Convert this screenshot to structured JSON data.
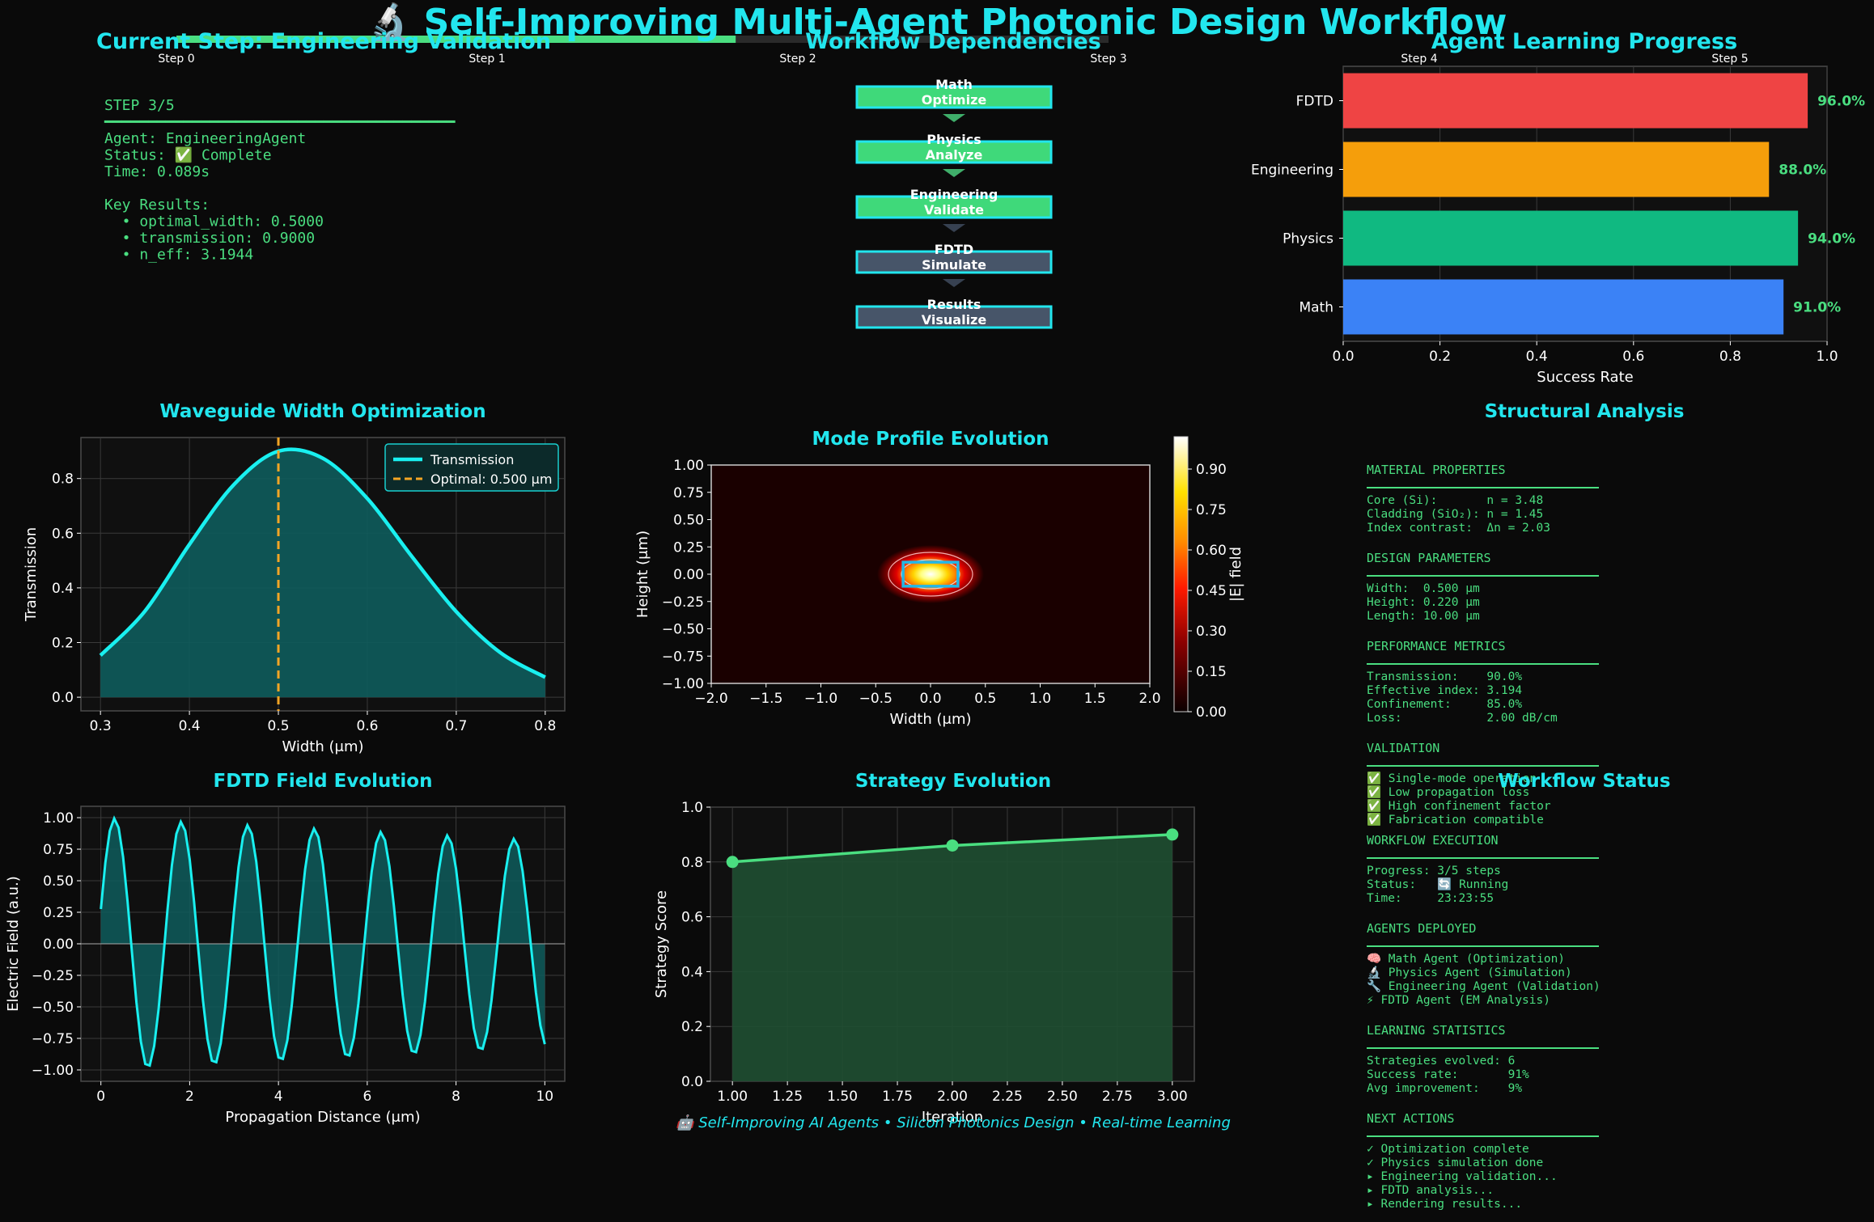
{
  "main_title": "🔬 Self-Improving Multi-Agent Photonic Design Workflow",
  "footer": "🤖 Self-Improving AI Agents • Silicon Photonics Design • Real-time Learning",
  "colors": {
    "accent": "#22e6ee",
    "text_green": "#4ade80",
    "bg": "#0a0a0a",
    "panel": "#0f0f0f"
  },
  "progress": {
    "steps": [
      "Step 0",
      "Step 1",
      "Step 2",
      "Step 3",
      "Step 4",
      "Step 5"
    ],
    "fraction": 0.6
  },
  "current_step": {
    "title": "Current Step: Engineering Validation",
    "lines": [
      "STEP 3/5",
      "━━━━━━━━━━━━━━━━━━━━━━━━━━━━━━━━━━━━━━━━",
      "Agent: EngineeringAgent",
      "Status: ✅ Complete",
      "Time: 0.089s",
      "",
      "Key Results:",
      "  • optimal_width: 0.5000",
      "  • transmission: 0.9000",
      "  • n_eff: 3.1944"
    ]
  },
  "dependencies": {
    "title": "Workflow Dependencies",
    "nodes": [
      {
        "line1": "Math",
        "line2": "Optimize",
        "done": true
      },
      {
        "line1": "Physics",
        "line2": "Analyze",
        "done": true
      },
      {
        "line1": "Engineering",
        "line2": "Validate",
        "done": true
      },
      {
        "line1": "FDTD",
        "line2": "Simulate",
        "done": false
      },
      {
        "line1": "Results",
        "line2": "Visualize",
        "done": false
      }
    ]
  },
  "structural": {
    "title": "Structural Analysis",
    "sections": [
      {
        "header": "MATERIAL PROPERTIES",
        "lines": [
          "Core (Si):       n = 3.48",
          "Cladding (SiO₂): n = 1.45",
          "Index contrast:  Δn = 2.03"
        ]
      },
      {
        "header": "DESIGN PARAMETERS",
        "lines": [
          "Width:  0.500 μm",
          "Height: 0.220 μm",
          "Length: 10.00 μm"
        ]
      },
      {
        "header": "PERFORMANCE METRICS",
        "lines": [
          "Transmission:    90.0%",
          "Effective index: 3.194",
          "Confinement:     85.0%",
          "Loss:            2.00 dB/cm"
        ]
      },
      {
        "header": "VALIDATION",
        "lines": [
          "✅ Single-mode operation",
          "✅ Low propagation loss",
          "✅ High confinement factor",
          "✅ Fabrication compatible"
        ]
      }
    ]
  },
  "workflow_status": {
    "title": "Workflow Status",
    "sections": [
      {
        "header": "WORKFLOW EXECUTION",
        "lines": [
          "Progress: 3/5 steps",
          "Status:   🔄 Running",
          "Time:     23:23:55"
        ]
      },
      {
        "header": "AGENTS DEPLOYED",
        "lines": [
          "🧠 Math Agent (Optimization)",
          "🔬 Physics Agent (Simulation)",
          "🔧 Engineering Agent (Validation)",
          "⚡ FDTD Agent (EM Analysis)"
        ]
      },
      {
        "header": "LEARNING STATISTICS",
        "lines": [
          "Strategies evolved: 6",
          "Success rate:       91%",
          "Avg improvement:    9%"
        ]
      },
      {
        "header": "NEXT ACTIONS",
        "lines": [
          "✓ Optimization complete",
          "✓ Physics simulation done",
          "▸ Engineering validation...",
          "▸ FDTD analysis...",
          "▸ Rendering results..."
        ]
      }
    ]
  },
  "chart_data": [
    {
      "id": "learning",
      "type": "bar",
      "orientation": "horizontal",
      "title": "Agent Learning Progress",
      "categories": [
        "FDTD",
        "Engineering",
        "Physics",
        "Math"
      ],
      "values": [
        0.96,
        0.88,
        0.94,
        0.91
      ],
      "labels": [
        "96.0%",
        "88.0%",
        "94.0%",
        "91.0%"
      ],
      "colors": [
        "#ef4444",
        "#f59e0b",
        "#10b981",
        "#3b82f6"
      ],
      "xlabel": "Success Rate",
      "xlim": [
        0,
        1.0
      ],
      "xticks": [
        "0.0",
        "0.2",
        "0.4",
        "0.6",
        "0.8",
        "1.0"
      ],
      "grid": true
    },
    {
      "id": "width",
      "type": "area",
      "title": "Waveguide Width Optimization",
      "xlabel": "Width (μm)",
      "ylabel": "Transmission",
      "xlim": [
        0.3,
        0.8
      ],
      "ylim": [
        0,
        0.9
      ],
      "xticks": [
        "0.3",
        "0.4",
        "0.5",
        "0.6",
        "0.7",
        "0.8"
      ],
      "yticks": [
        "0.0",
        "0.2",
        "0.4",
        "0.6",
        "0.8"
      ],
      "x": [
        0.3,
        0.35,
        0.4,
        0.45,
        0.5,
        0.55,
        0.6,
        0.65,
        0.7,
        0.75,
        0.8
      ],
      "y": [
        0.153,
        0.315,
        0.559,
        0.778,
        0.9,
        0.874,
        0.727,
        0.515,
        0.313,
        0.162,
        0.073
      ],
      "optimal": 0.5,
      "legend": [
        "Transmission",
        "Optimal: 0.500 μm"
      ],
      "legend_position": "top-right",
      "grid": true
    },
    {
      "id": "mode",
      "type": "heatmap",
      "title": "Mode Profile Evolution",
      "xlabel": "Width (μm)",
      "ylabel": "Height (μm)",
      "xlim": [
        -2,
        2
      ],
      "ylim": [
        -1,
        1
      ],
      "xticks": [
        "−2.0",
        "−1.5",
        "−1.0",
        "−0.5",
        "0.0",
        "0.5",
        "1.0",
        "1.5",
        "2.0"
      ],
      "yticks": [
        "−1.00",
        "−0.75",
        "−0.50",
        "−0.25",
        "0.00",
        "0.25",
        "0.50",
        "0.75",
        "1.00"
      ],
      "colorbar_label": "|E| field",
      "colorbar_ticks": [
        "0.00",
        "0.15",
        "0.30",
        "0.45",
        "0.60",
        "0.75",
        "0.90"
      ],
      "core": {
        "width": 0.5,
        "height": 0.22
      }
    },
    {
      "id": "fdtd",
      "type": "line",
      "title": "FDTD Field Evolution",
      "xlabel": "Propagation Distance (μm)",
      "ylabel": "Electric Field (a.u.)",
      "xlim": [
        0,
        10
      ],
      "ylim": [
        -1,
        1
      ],
      "xticks": [
        "0",
        "2",
        "4",
        "6",
        "8",
        "10"
      ],
      "yticks": [
        "−1.00",
        "−0.75",
        "−0.50",
        "−0.25",
        "0.00",
        "0.25",
        "0.50",
        "0.75",
        "1.00"
      ],
      "wave": {
        "amplitude_start": 1.0,
        "amplitude_end": 0.82,
        "period": 1.5,
        "phase_deg": 16
      }
    },
    {
      "id": "strategy",
      "type": "line",
      "title": "Strategy Evolution",
      "xlabel": "Iteration",
      "ylabel": "Strategy Score",
      "xlim": [
        0.9,
        3.1
      ],
      "ylim": [
        0,
        1
      ],
      "xticks": [
        "1.00",
        "1.25",
        "1.50",
        "1.75",
        "2.00",
        "2.25",
        "2.50",
        "2.75",
        "3.00"
      ],
      "yticks": [
        "0.0",
        "0.2",
        "0.4",
        "0.6",
        "0.8",
        "1.0"
      ],
      "x": [
        1,
        2,
        3
      ],
      "y": [
        0.8,
        0.86,
        0.9
      ]
    }
  ]
}
